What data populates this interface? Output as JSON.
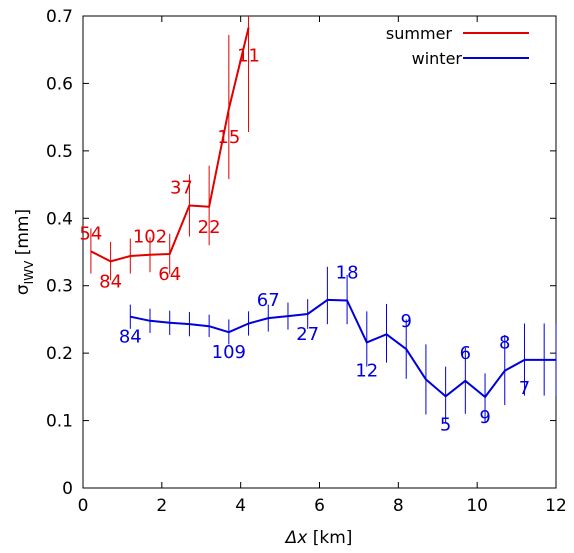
{
  "chart_data": {
    "type": "line",
    "title": "",
    "xlabel_symbol": "Δx",
    "xlabel_unit": " [km]",
    "ylabel_main": "σ",
    "ylabel_sub": "IWV",
    "ylabel_unit": " [mm]",
    "xlim": [
      0,
      12
    ],
    "ylim": [
      0,
      0.7
    ],
    "x_ticks": [
      0,
      2,
      4,
      6,
      8,
      10,
      12
    ],
    "y_ticks": [
      0,
      0.1,
      0.2,
      0.3,
      0.4,
      0.5,
      0.6,
      0.7
    ],
    "x_tick_labels": [
      "0",
      "2",
      "4",
      "6",
      "8",
      "10",
      "12"
    ],
    "y_tick_labels": [
      "0",
      "0.1",
      "0.2",
      "0.3",
      "0.4",
      "0.5",
      "0.6",
      "0.7"
    ],
    "grid": false,
    "legend_position": "top-right",
    "series": [
      {
        "name": "summer",
        "color": "#e00000",
        "x": [
          0.2,
          0.7,
          1.2,
          1.7,
          2.2,
          2.7,
          3.2,
          3.7,
          4.2
        ],
        "y": [
          0.351,
          0.336,
          0.344,
          0.346,
          0.347,
          0.419,
          0.417,
          0.562,
          0.683
        ],
        "y_low": [
          0.318,
          0.308,
          0.318,
          0.32,
          0.317,
          0.373,
          0.36,
          0.458,
          0.528
        ],
        "y_high": [
          0.385,
          0.365,
          0.37,
          0.372,
          0.377,
          0.465,
          0.478,
          0.672,
          0.7
        ],
        "point_labels": [
          {
            "x": 0.2,
            "y": 0.351,
            "text": "54",
            "pos": "above"
          },
          {
            "x": 0.7,
            "y": 0.336,
            "text": "84",
            "pos": "below"
          },
          {
            "x": 1.7,
            "y": 0.346,
            "text": "102",
            "pos": "above"
          },
          {
            "x": 2.2,
            "y": 0.347,
            "text": "64",
            "pos": "below"
          },
          {
            "x": 2.7,
            "y": 0.419,
            "text": "37",
            "pos": "above-left"
          },
          {
            "x": 3.2,
            "y": 0.417,
            "text": "22",
            "pos": "below"
          },
          {
            "x": 3.7,
            "y": 0.562,
            "text": "15",
            "pos": "below-far"
          },
          {
            "x": 4.2,
            "y": 0.683,
            "text": "11",
            "pos": "below-far"
          }
        ]
      },
      {
        "name": "winter",
        "color": "#0000dd",
        "x": [
          1.2,
          1.7,
          2.2,
          2.7,
          3.2,
          3.7,
          4.2,
          4.7,
          5.2,
          5.7,
          6.2,
          6.7,
          7.2,
          7.7,
          8.2,
          8.7,
          9.2,
          9.7,
          10.2,
          10.7,
          11.2,
          11.7,
          12.0
        ],
        "y": [
          0.254,
          0.248,
          0.245,
          0.243,
          0.24,
          0.231,
          0.244,
          0.252,
          0.255,
          0.258,
          0.279,
          0.278,
          0.216,
          0.228,
          0.206,
          0.161,
          0.136,
          0.159,
          0.135,
          0.174,
          0.19,
          0.19,
          0.19
        ],
        "y_low": [
          0.236,
          0.23,
          0.227,
          0.225,
          0.224,
          0.213,
          0.226,
          0.232,
          0.235,
          0.236,
          0.243,
          0.243,
          0.18,
          0.186,
          0.162,
          0.109,
          0.097,
          0.11,
          0.098,
          0.123,
          0.137,
          0.137,
          0.137
        ],
        "y_high": [
          0.272,
          0.266,
          0.263,
          0.261,
          0.257,
          0.25,
          0.262,
          0.272,
          0.275,
          0.28,
          0.328,
          0.316,
          0.262,
          0.273,
          0.25,
          0.213,
          0.18,
          0.208,
          0.17,
          0.227,
          0.244,
          0.244,
          0.244
        ],
        "point_labels": [
          {
            "x": 1.2,
            "y": 0.254,
            "text": "84",
            "pos": "below"
          },
          {
            "x": 3.7,
            "y": 0.231,
            "text": "109",
            "pos": "below"
          },
          {
            "x": 4.7,
            "y": 0.252,
            "text": "67",
            "pos": "above"
          },
          {
            "x": 5.7,
            "y": 0.258,
            "text": "27",
            "pos": "below"
          },
          {
            "x": 6.7,
            "y": 0.278,
            "text": "18",
            "pos": "above-far"
          },
          {
            "x": 7.2,
            "y": 0.216,
            "text": "12",
            "pos": "below-far"
          },
          {
            "x": 8.2,
            "y": 0.206,
            "text": "9",
            "pos": "above-far"
          },
          {
            "x": 9.2,
            "y": 0.136,
            "text": "5",
            "pos": "below-far"
          },
          {
            "x": 9.7,
            "y": 0.159,
            "text": "6",
            "pos": "above-far"
          },
          {
            "x": 10.2,
            "y": 0.135,
            "text": "9",
            "pos": "below"
          },
          {
            "x": 10.7,
            "y": 0.174,
            "text": "8",
            "pos": "above-far"
          },
          {
            "x": 11.2,
            "y": 0.19,
            "text": "7",
            "pos": "below-far"
          }
        ]
      }
    ]
  }
}
